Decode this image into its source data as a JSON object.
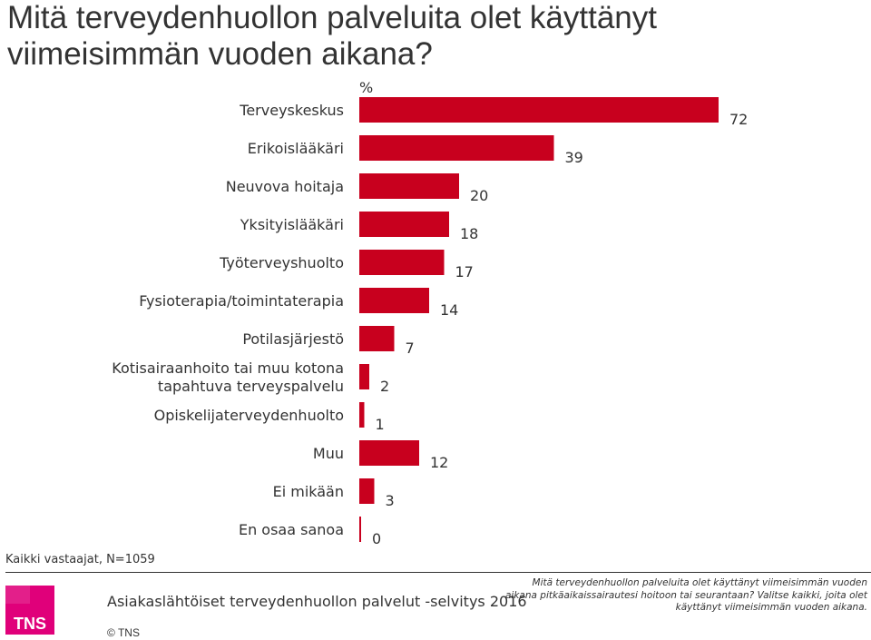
{
  "title": "Mitä terveydenhuollon palveluita olet käyttänyt viimeisimmän vuoden aikana?",
  "chart_data": {
    "type": "bar",
    "orientation": "horizontal",
    "unit_label": "%",
    "categories": [
      "Terveyskeskus",
      "Erikoislääkäri",
      "Neuvova hoitaja",
      "Yksityislääkäri",
      "Työterveyshuolto",
      "Fysioterapia/toimintaterapia",
      "Potilasjärjestö",
      "Kotisairaanhoito tai muu kotona tapahtuva terveyspalvelu",
      "Opiskelijaterveydenhuolto",
      "Muu",
      "Ei mikään",
      "En osaa sanoa"
    ],
    "values": [
      72,
      39,
      20,
      18,
      17,
      14,
      7,
      2,
      1,
      12,
      3,
      0
    ],
    "xlim": [
      0,
      100
    ],
    "grid": false,
    "bar_color": "#c8001e"
  },
  "base_note": "Kaikki vastaajat, N=1059",
  "footer": {
    "survey": "Asiakaslähtöiset terveydenhuollon palvelut -selvitys 2016",
    "question": "Mitä terveydenhuollon palveluita olet käyttänyt viimeisimmän vuoden aikana pitkäaikaissairautesi hoitoon tai seurantaan? Valitse kaikki, joita olet käyttänyt viimeisimmän vuoden aikana.",
    "copyright": "© TNS",
    "logo_text": "TNS",
    "logo_color": "#e0007a"
  }
}
